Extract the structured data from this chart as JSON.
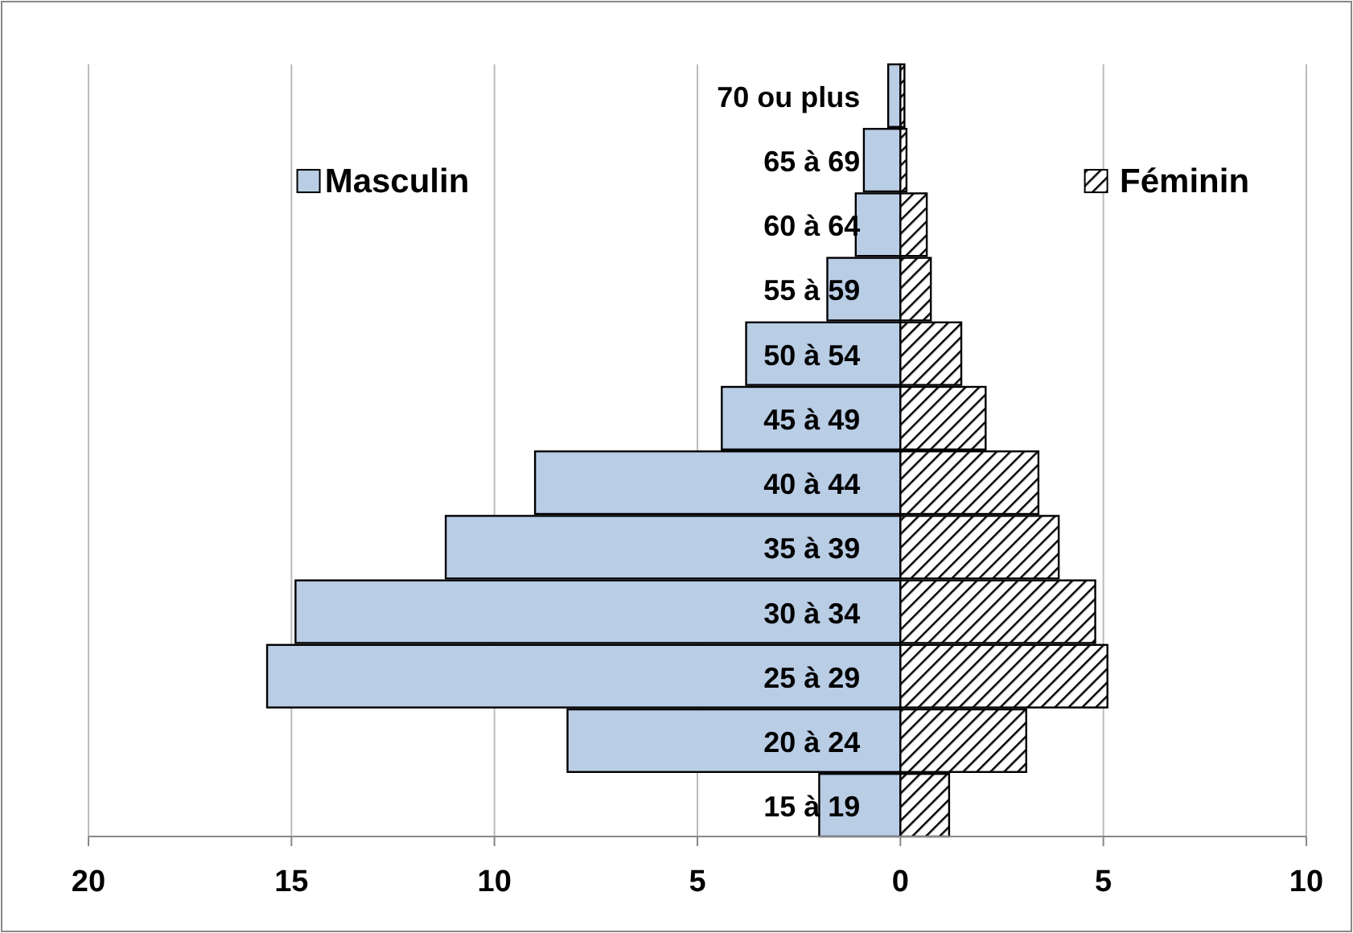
{
  "chart_data": {
    "type": "bar",
    "orientation": "horizontal",
    "categories": [
      "70 ou plus",
      "65 à 69",
      "60 à 64",
      "55 à 59",
      "50 à 54",
      "45 à 49",
      "40 à 44",
      "35 à 39",
      "30 à 34",
      "25 à 29",
      "20 à 24",
      "15 à 19"
    ],
    "series": [
      {
        "name": "Masculin",
        "color": "#b9cde5",
        "values": [
          -0.3,
          -0.9,
          -1.1,
          -1.8,
          -3.8,
          -4.4,
          -9.0,
          -11.2,
          -14.9,
          -15.6,
          -8.2,
          -2.0
        ]
      },
      {
        "name": "Féminin",
        "color": "#000000",
        "values": [
          0.1,
          0.15,
          0.65,
          0.75,
          1.5,
          2.1,
          3.4,
          3.9,
          4.8,
          5.1,
          3.1,
          1.2
        ]
      }
    ],
    "xlim": [
      -20,
      10
    ],
    "xticks": [
      {
        "value": -20,
        "label": "20"
      },
      {
        "value": -15,
        "label": "15"
      },
      {
        "value": -10,
        "label": "10"
      },
      {
        "value": -5,
        "label": "5"
      },
      0,
      5,
      10
    ],
    "grid": "x",
    "stacked": true,
    "legend": "top"
  }
}
